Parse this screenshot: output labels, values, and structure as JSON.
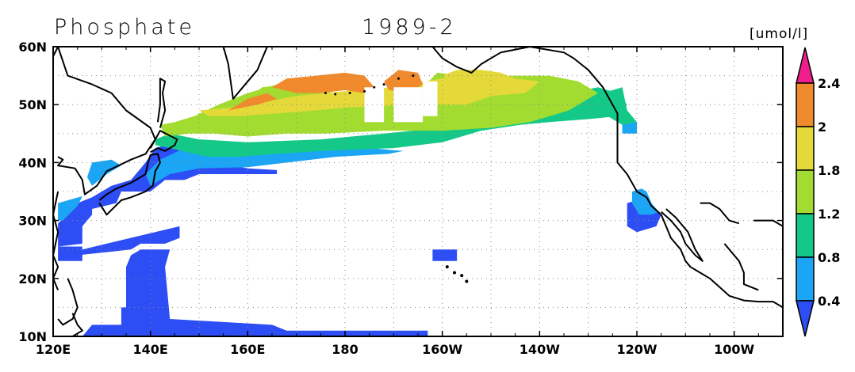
{
  "title": "Phosphate",
  "period": "1989-2",
  "units": "[umol/l]",
  "chart_data": {
    "type": "map",
    "variable": "Phosphate",
    "period": "1989-2",
    "units": "umol/l",
    "lon_range": [
      120,
      270
    ],
    "lat_range": [
      10,
      60
    ],
    "x_tick_labels": [
      "120E",
      "140E",
      "160E",
      "180",
      "160W",
      "140W",
      "120W",
      "100W"
    ],
    "x_tick_lons": [
      120,
      140,
      160,
      180,
      200,
      220,
      240,
      260
    ],
    "y_tick_labels": [
      "10N",
      "20N",
      "30N",
      "40N",
      "50N",
      "60N"
    ],
    "y_tick_lats": [
      10,
      20,
      30,
      40,
      50,
      60
    ],
    "grid": "dotted",
    "colorbar": {
      "position": "right",
      "levels": [
        "0.4",
        "0.8",
        "1.2",
        "1.8",
        "2",
        "2.4"
      ],
      "colors": [
        "#2d4df5",
        "#1aa5f5",
        "#14c987",
        "#a3dc30",
        "#e5d93a",
        "#f08a2c",
        "#f01e8c"
      ]
    }
  }
}
